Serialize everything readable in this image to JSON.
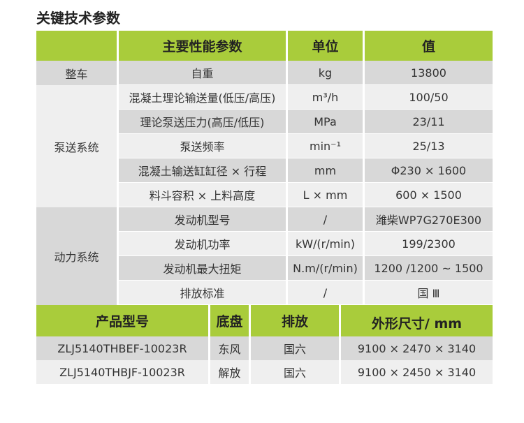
{
  "title": "关键技术参数",
  "colors": {
    "header_green": "#a9cc3b",
    "row_gray": "#d8d8d8",
    "row_light": "#efefef"
  },
  "spec_table": {
    "headers": [
      "",
      "主要性能参数",
      "单位",
      "值"
    ],
    "groups": [
      {
        "category": "整车",
        "rows": [
          {
            "param": "自重",
            "unit": "kg",
            "value": "13800"
          }
        ]
      },
      {
        "category": "泵送系统",
        "rows": [
          {
            "param": "混凝土理论输送量(低压/高压)",
            "unit": "m³/h",
            "value": "100/50"
          },
          {
            "param": "理论泵送压力(高压/低压)",
            "unit": "MPa",
            "value": "23/11"
          },
          {
            "param": "泵送频率",
            "unit": "min⁻¹",
            "value": "25/13"
          },
          {
            "param": "混凝土输送缸缸径 × 行程",
            "unit": "mm",
            "value": "Φ230 × 1600"
          },
          {
            "param": "料斗容积 × 上料高度",
            "unit": "L × mm",
            "value": "600 × 1500"
          }
        ]
      },
      {
        "category": "动力系统",
        "rows": [
          {
            "param": "发动机型号",
            "unit": "/",
            "value": "潍柴WP7G270E300"
          },
          {
            "param": "发动机功率",
            "unit": "kW/(r/min)",
            "value": "199/2300"
          },
          {
            "param": "发动机最大扭矩",
            "unit": "N.m/(r/min)",
            "value": "1200 /1200 ~ 1500"
          },
          {
            "param": "排放标准",
            "unit": "/",
            "value": "国 Ⅲ"
          }
        ]
      }
    ]
  },
  "model_table": {
    "headers": [
      "产品型号",
      "底盘",
      "排放",
      "外形尺寸/ mm"
    ],
    "rows": [
      [
        "ZLJ5140THBEF-10023R",
        "东风",
        "国六",
        "9100 × 2470 × 3140"
      ],
      [
        "ZLJ5140THBJF-10023R",
        "解放",
        "国六",
        "9100 × 2450 × 3140"
      ]
    ]
  }
}
